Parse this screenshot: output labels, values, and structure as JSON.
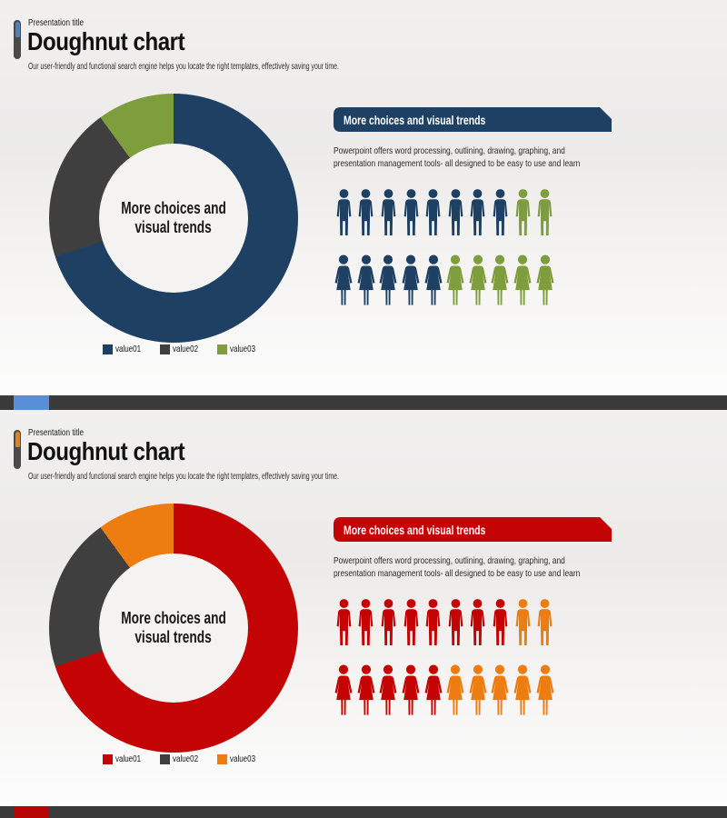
{
  "slides": [
    {
      "eyebrow": "Presentation title",
      "title": "Doughnut chart",
      "subtitle": "Our user-friendly and functional search engine helps you locate the right templates, effectively saving your time.",
      "banner_title": "More choices and visual trends",
      "body_text": "Powerpoint offers word processing, outlining, drawing, graphing, and presentation management tools- all designed to be easy to use and learn",
      "donut_center_line1": "More choices and",
      "donut_center_line2": "visual trends",
      "theme": {
        "primary": "#1E4063",
        "secondary": "#3F3F3F",
        "tertiary": "#7E9D3C",
        "pill_accent": "#4A82C4"
      }
    },
    {
      "eyebrow": "Presentation title",
      "title": "Doughnut chart",
      "subtitle": "Our user-friendly and functional search engine helps you locate the right templates, effectively saving your time.",
      "banner_title": "More choices and visual trends",
      "body_text": "Powerpoint offers word processing, outlining, drawing, graphing, and presentation management tools- all designed to be easy to use and learn",
      "donut_center_line1": "More choices and",
      "donut_center_line2": "visual trends",
      "theme": {
        "primary": "#C40404",
        "secondary": "#3F3F3F",
        "tertiary": "#EE7D11",
        "pill_accent": "#ED7D14"
      }
    }
  ],
  "dividers": [
    {
      "bar_color": "#3A3A3A",
      "accent_color": "#5A8ED8"
    },
    {
      "bar_color": "#3A3A3A",
      "accent_color": "#B90404"
    }
  ],
  "chart_data": [
    {
      "type": "doughnut",
      "title": "Doughnut chart",
      "center_label": "More choices and visual trends",
      "units": "percent",
      "legend_position": "bottom",
      "segments": [
        {
          "label": "value01",
          "value": 70,
          "color": "#1E4063"
        },
        {
          "label": "value02",
          "value": 20,
          "color": "#3F3F3F"
        },
        {
          "label": "value03",
          "value": 10,
          "color": "#7E9D3C"
        }
      ],
      "pictograph": {
        "rows": [
          {
            "icon": "male",
            "total": 10,
            "groups": [
              {
                "color": "#1E4063",
                "count": 8
              },
              {
                "color": "#7E9D3C",
                "count": 2
              }
            ]
          },
          {
            "icon": "female",
            "total": 10,
            "groups": [
              {
                "color": "#1E4063",
                "count": 5
              },
              {
                "color": "#7E9D3C",
                "count": 5
              }
            ]
          }
        ]
      }
    },
    {
      "type": "doughnut",
      "title": "Doughnut chart",
      "center_label": "More choices and visual trends",
      "units": "percent",
      "legend_position": "bottom",
      "segments": [
        {
          "label": "value01",
          "value": 70,
          "color": "#C40404"
        },
        {
          "label": "value02",
          "value": 20,
          "color": "#3F3F3F"
        },
        {
          "label": "value03",
          "value": 10,
          "color": "#EE7D11"
        }
      ],
      "pictograph": {
        "rows": [
          {
            "icon": "male",
            "total": 10,
            "groups": [
              {
                "color": "#C40404",
                "count": 8
              },
              {
                "color": "#EE7D11",
                "count": 2
              }
            ]
          },
          {
            "icon": "female",
            "total": 10,
            "groups": [
              {
                "color": "#C40404",
                "count": 5
              },
              {
                "color": "#EE7D11",
                "count": 5
              }
            ]
          }
        ]
      }
    }
  ]
}
